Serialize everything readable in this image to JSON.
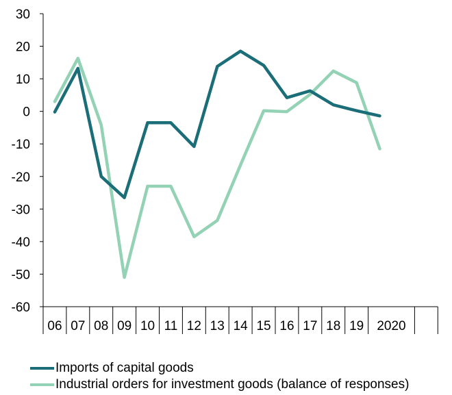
{
  "chart_data": {
    "type": "line",
    "title": "",
    "xlabel": "",
    "ylabel": "",
    "ylim": [
      -60,
      30
    ],
    "yticks": [
      30,
      20,
      10,
      0,
      -10,
      -20,
      -30,
      -40,
      -50,
      -60
    ],
    "ytick_labels": [
      "30",
      "20",
      "10",
      "0",
      "-10",
      "-20",
      "-30",
      "-40",
      "-50",
      "-60"
    ],
    "x_periods": [
      "06",
      "07",
      "08",
      "09",
      "10",
      "11",
      "12",
      "13",
      "14",
      "15",
      "16",
      "17",
      "18",
      "19",
      "",
      "2020",
      ""
    ],
    "x": [
      "06",
      "07",
      "08",
      "09",
      "10",
      "11",
      "12",
      "13",
      "14",
      "15",
      "16",
      "17",
      "18",
      "19",
      ""
    ],
    "grid": false,
    "legend_position": "bottom",
    "series": [
      {
        "name": "Imports of capital goods",
        "color": "#1b6e78",
        "values": [
          -0.2,
          13.2,
          -20,
          -26.5,
          -3.5,
          -3.5,
          -10.8,
          13.8,
          18.5,
          14.1,
          4.2,
          6.3,
          2,
          0.2,
          -1.4
        ]
      },
      {
        "name": "Industrial orders for investment goods (balance of responses)",
        "color": "#93d2b5",
        "values": [
          3,
          16.3,
          -4.2,
          -51,
          -23,
          -23,
          -38.5,
          -33.5,
          -16.5,
          0.2,
          -0.1,
          5.2,
          12.4,
          8.8,
          -11.5
        ]
      }
    ]
  }
}
